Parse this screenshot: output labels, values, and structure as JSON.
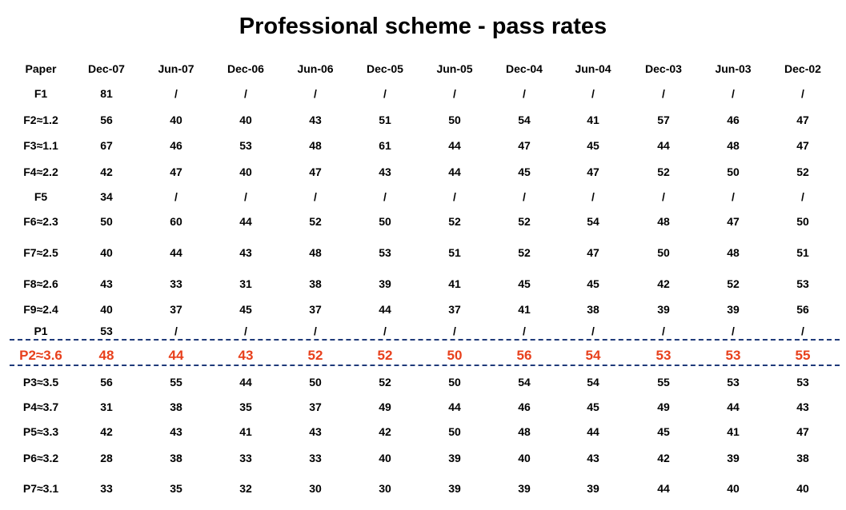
{
  "title": "Professional scheme - pass rates",
  "header": [
    "Paper",
    "Dec-07",
    "Jun-07",
    "Dec-06",
    "Jun-06",
    "Dec-05",
    "Jun-05",
    "Dec-04",
    "Jun-04",
    "Dec-03",
    "Jun-03",
    "Dec-02"
  ],
  "rows": [
    [
      "F1",
      "81",
      "/",
      "/",
      "/",
      "/",
      "/",
      "/",
      "/",
      "/",
      "/",
      "/"
    ],
    [
      "F2≈1.2",
      "56",
      "40",
      "40",
      "43",
      "51",
      "50",
      "54",
      "41",
      "57",
      "46",
      "47"
    ],
    [
      "F3≈1.1",
      "67",
      "46",
      "53",
      "48",
      "61",
      "44",
      "47",
      "45",
      "44",
      "48",
      "47"
    ],
    [
      "F4≈2.2",
      "42",
      "47",
      "40",
      "47",
      "43",
      "44",
      "45",
      "47",
      "52",
      "50",
      "52"
    ],
    [
      "F5",
      "34",
      "/",
      "/",
      "/",
      "/",
      "/",
      "/",
      "/",
      "/",
      "/",
      "/"
    ],
    [
      "F6≈2.3",
      "50",
      "60",
      "44",
      "52",
      "50",
      "52",
      "52",
      "54",
      "48",
      "47",
      "50"
    ],
    [
      "F7≈2.5",
      "40",
      "44",
      "43",
      "48",
      "53",
      "51",
      "52",
      "47",
      "50",
      "48",
      "51"
    ],
    [
      "F8≈2.6",
      "43",
      "33",
      "31",
      "38",
      "39",
      "41",
      "45",
      "45",
      "42",
      "52",
      "53"
    ],
    [
      "F9≈2.4",
      "40",
      "37",
      "45",
      "37",
      "44",
      "37",
      "41",
      "38",
      "39",
      "39",
      "56"
    ],
    [
      "P1",
      "53",
      "/",
      "/",
      "/",
      "/",
      "/",
      "/",
      "/",
      "/",
      "/",
      "/"
    ],
    [
      "P2≈3.6",
      "48",
      "44",
      "43",
      "52",
      "52",
      "50",
      "56",
      "54",
      "53",
      "53",
      "55"
    ],
    [
      "P3≈3.5",
      "56",
      "55",
      "44",
      "50",
      "52",
      "50",
      "54",
      "54",
      "55",
      "53",
      "53"
    ],
    [
      "P4≈3.7",
      "31",
      "38",
      "35",
      "37",
      "49",
      "44",
      "46",
      "45",
      "49",
      "44",
      "43"
    ],
    [
      "P5≈3.3",
      "42",
      "43",
      "41",
      "43",
      "42",
      "50",
      "48",
      "44",
      "45",
      "41",
      "47"
    ],
    [
      "P6≈3.2",
      "28",
      "38",
      "33",
      "33",
      "40",
      "39",
      "40",
      "43",
      "42",
      "39",
      "38"
    ],
    [
      "P7≈3.1",
      "33",
      "35",
      "32",
      "30",
      "30",
      "39",
      "39",
      "39",
      "44",
      "40",
      "40"
    ]
  ],
  "highlight_row": 10,
  "highlight_color": "#e8401c",
  "divider_color": "#1f3a7a"
}
